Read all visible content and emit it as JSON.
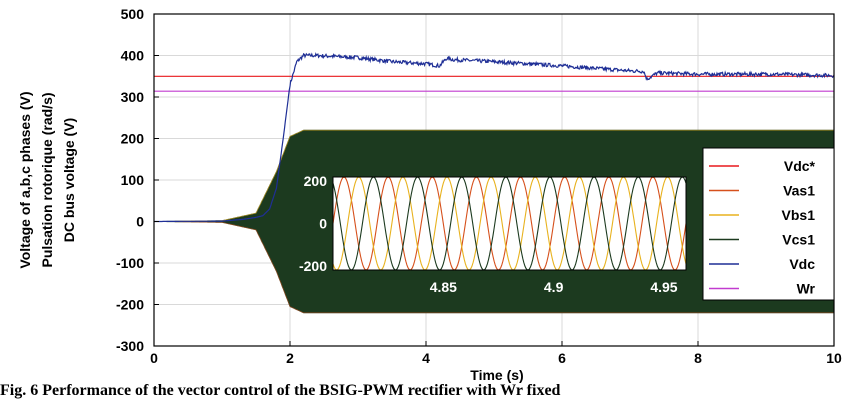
{
  "chart_data": {
    "type": "line",
    "xlabel": "Time (s)",
    "ylabel_lines": [
      "Voltage of a,b,c phases (V)",
      "Pulsation rotorique (rad/s)",
      "DC bus voltage (V)"
    ],
    "xlim": [
      0,
      10
    ],
    "ylim": [
      -300,
      500
    ],
    "x_ticks": [
      "0",
      "2",
      "4",
      "6",
      "8",
      "10"
    ],
    "y_ticks": [
      "-300",
      "-200",
      "-100",
      "0",
      "100",
      "200",
      "300",
      "400",
      "500"
    ],
    "grid": true,
    "legend_position": "right, inside",
    "series": [
      {
        "name": "Vdc*",
        "color": "#e8191d",
        "x": [
          0,
          10
        ],
        "values": [
          350,
          350
        ]
      },
      {
        "name": "Vas1",
        "color": "#d6501c",
        "kind": "three-phase sine",
        "amplitude_final": 220,
        "ramp": {
          "x": [
            0,
            1,
            1.5,
            1.8,
            2.0,
            2.2
          ],
          "amp": [
            0,
            2,
            20,
            120,
            205,
            220
          ]
        }
      },
      {
        "name": "Vbs1",
        "color": "#e8b21e",
        "kind": "three-phase sine",
        "amplitude_final": 220
      },
      {
        "name": "Vcs1",
        "color": "#1c3a1f",
        "kind": "three-phase sine",
        "amplitude_final": 220
      },
      {
        "name": "Vdc",
        "color": "#1f2f96",
        "x": [
          0,
          1.0,
          1.3,
          1.5,
          1.6,
          1.7,
          1.8,
          1.9,
          2.0,
          2.1,
          2.2,
          2.4,
          3.0,
          3.5,
          4.0,
          4.2,
          4.3,
          4.4,
          5.0,
          6.0,
          7.0,
          7.2,
          7.25,
          7.4,
          8.0,
          9.0,
          10.0
        ],
        "values": [
          0,
          1,
          5,
          10,
          14,
          30,
          80,
          200,
          330,
          385,
          400,
          400,
          395,
          385,
          380,
          375,
          393,
          390,
          385,
          375,
          363,
          362,
          343,
          358,
          355,
          355,
          352
        ]
      },
      {
        "name": "Wr",
        "color": "#c13bcf",
        "x": [
          0,
          10
        ],
        "values": [
          314,
          314
        ]
      }
    ],
    "inset": {
      "xlim": [
        4.8,
        4.96
      ],
      "ylim": [
        -220,
        220
      ],
      "x_ticks": [
        "4.85",
        "4.9",
        "4.95"
      ],
      "y_ticks": [
        "200",
        "0",
        "-200"
      ],
      "series": [
        "Vas1",
        "Vbs1",
        "Vcs1"
      ],
      "amplitude": 220,
      "frequency_hz": 50
    }
  },
  "caption": "Fig. 6 Performance of the vector control of the BSIG-PWM rectifier with Wr fixed"
}
